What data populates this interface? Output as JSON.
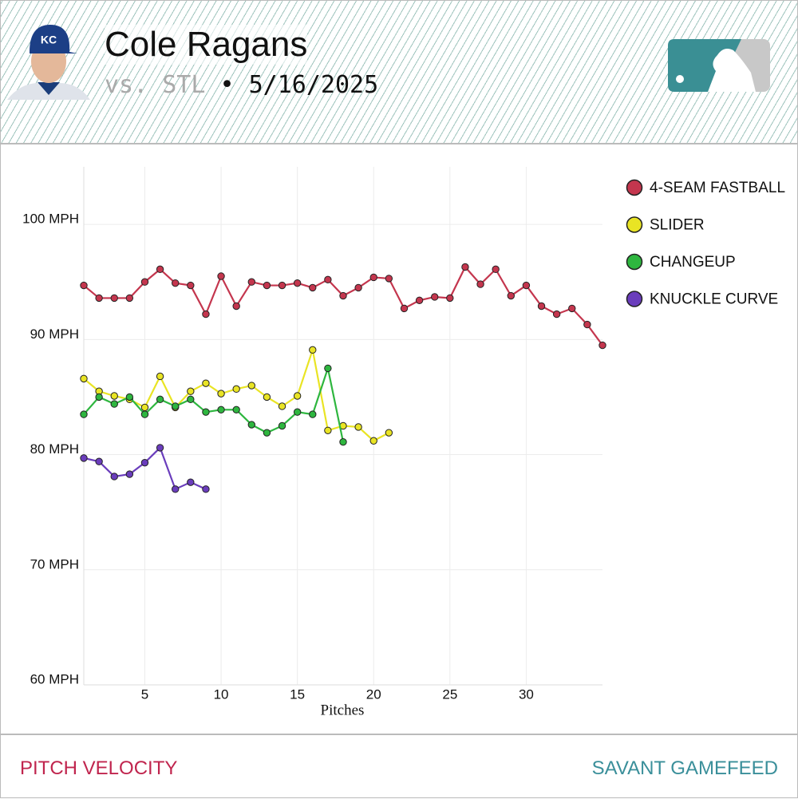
{
  "header": {
    "player": "Cole Ragans",
    "opponent": "vs. STL",
    "separator": "•",
    "date": "5/16/2025"
  },
  "footer": {
    "left": "PITCH VELOCITY",
    "right": "SAVANT GAMEFEED"
  },
  "chart_data": {
    "type": "line",
    "x_label": "Pitches",
    "x": [
      1,
      2,
      3,
      4,
      5,
      6,
      7,
      8,
      9,
      10,
      11,
      12,
      13,
      14,
      15,
      16,
      17,
      18,
      19,
      20,
      21,
      22,
      23,
      24,
      25,
      26,
      27,
      28,
      29,
      30,
      31,
      32,
      33,
      34,
      35
    ],
    "xlim": [
      1,
      35
    ],
    "xticks": [
      5,
      10,
      15,
      20,
      25,
      30
    ],
    "ylim": [
      60,
      105
    ],
    "yticks": [
      {
        "value": 60,
        "label": "60 MPH"
      },
      {
        "value": 70,
        "label": "70 MPH"
      },
      {
        "value": 80,
        "label": "80 MPH"
      },
      {
        "value": 90,
        "label": "90 MPH"
      },
      {
        "value": 100,
        "label": "100 MPH"
      }
    ],
    "grid": true,
    "legend": "right",
    "series": [
      {
        "name": "4-SEAM FASTBALL",
        "color": "#c4364e",
        "values": [
          94.7,
          93.6,
          93.6,
          93.6,
          95.0,
          96.1,
          94.9,
          94.7,
          92.2,
          95.5,
          92.9,
          95.0,
          94.7,
          94.7,
          94.9,
          94.5,
          95.2,
          93.8,
          94.5,
          95.4,
          95.3,
          92.7,
          93.4,
          93.7,
          93.6,
          96.3,
          94.8,
          96.1,
          93.8,
          94.7,
          92.9,
          92.2,
          92.7,
          91.3,
          89.5
        ]
      },
      {
        "name": "SLIDER",
        "color": "#e9e424",
        "values": [
          86.6,
          85.5,
          85.1,
          84.8,
          84.1,
          86.8,
          84.1,
          85.5,
          86.2,
          85.3,
          85.7,
          86.0,
          85.0,
          84.2,
          85.1,
          89.1,
          82.1,
          82.5,
          82.4,
          81.2,
          81.9,
          null,
          null,
          null,
          null,
          null,
          null,
          null,
          null,
          null,
          null,
          null,
          null,
          null,
          null
        ]
      },
      {
        "name": "CHANGEUP",
        "color": "#2eb63f",
        "values": [
          83.5,
          85.0,
          84.4,
          85.0,
          83.5,
          84.8,
          84.2,
          84.8,
          83.7,
          83.9,
          83.9,
          82.6,
          81.9,
          82.5,
          83.7,
          83.5,
          87.5,
          81.1,
          null,
          null,
          null,
          null,
          null,
          null,
          null,
          null,
          null,
          null,
          null,
          null,
          null,
          null,
          null,
          null,
          null
        ]
      },
      {
        "name": "KNUCKLE CURVE",
        "color": "#6a3dbc",
        "values": [
          79.7,
          79.4,
          78.1,
          78.3,
          79.3,
          80.6,
          77.0,
          77.6,
          77.0,
          null,
          null,
          null,
          null,
          null,
          null,
          null,
          null,
          null,
          null,
          null,
          null,
          null,
          null,
          null,
          null,
          null,
          null,
          null,
          null,
          null,
          null,
          null,
          null,
          null,
          null
        ]
      }
    ]
  }
}
